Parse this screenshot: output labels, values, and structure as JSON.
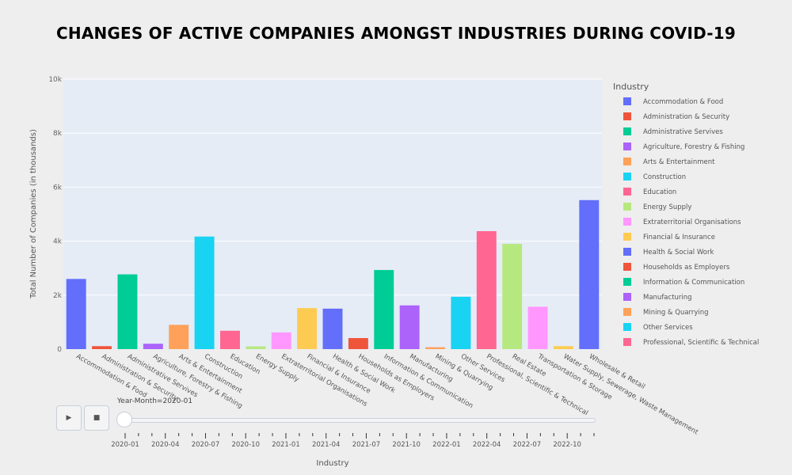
{
  "chart_data": {
    "type": "bar",
    "title": "CHANGES OF ACTIVE COMPANIES AMONGST INDUSTRIES DURING COVID-19",
    "xlabel": "Industry",
    "ylabel": "Total Number of Companies (in thousands)",
    "ylim": [
      0,
      10000
    ],
    "yticks": [
      0,
      2000,
      4000,
      6000,
      8000,
      10000
    ],
    "ytick_labels": [
      "0",
      "2k",
      "4k",
      "6k",
      "8k",
      "10k"
    ],
    "grid": true,
    "legend_title": "Industry",
    "legend_placement": "right",
    "categories": [
      "Accommodation & Food",
      "Administration & Security",
      "Administrative Servives",
      "Agriculture, Forestry & Fishing",
      "Arts & Entertainment",
      "Construction",
      "Education",
      "Energy Supply",
      "Extraterritorial Organisations",
      "Financial & Insurance",
      "Health & Social Work",
      "Households as Employers",
      "Information & Communication",
      "Manufacturing",
      "Mining & Quarrying",
      "Other Services",
      "Professional, Scientific & Technical",
      "Real Estate",
      "Transportation & Storage",
      "Water Supply, Sewerage, Waste Management",
      "Wholesale & Retail"
    ],
    "values": [
      2600,
      110,
      2770,
      200,
      900,
      4170,
      680,
      100,
      620,
      1520,
      1500,
      410,
      2930,
      1620,
      70,
      1940,
      4370,
      3900,
      1570,
      110,
      5520
    ],
    "colors": [
      "#636efa",
      "#ef553b",
      "#00cc96",
      "#ab63fa",
      "#ffa15a",
      "#19d3f3",
      "#ff6692",
      "#b6e880",
      "#ff97ff",
      "#fecb52",
      "#636efa",
      "#ef553b",
      "#00cc96",
      "#ab63fa",
      "#ffa15a",
      "#19d3f3",
      "#ff6692",
      "#b6e880",
      "#ff97ff",
      "#fecb52",
      "#636efa"
    ],
    "legend_entries": [
      "Accommodation & Food",
      "Administration & Security",
      "Administrative Servives",
      "Agriculture, Forestry & Fishing",
      "Arts & Entertainment",
      "Construction",
      "Education",
      "Energy Supply",
      "Extraterritorial Organisations",
      "Financial & Insurance",
      "Health & Social Work",
      "Households as Employers",
      "Information & Communication",
      "Manufacturing",
      "Mining & Quarrying",
      "Other Services",
      "Professional, Scientific & Technical"
    ]
  },
  "controls": {
    "play_icon": "▶",
    "stop_icon": "■",
    "current_label": "Year-Month=2020-01",
    "step_labels": [
      "2020-01",
      "2020-04",
      "2020-07",
      "2020-10",
      "2021-01",
      "2021-04",
      "2021-07",
      "2021-10",
      "2022-01",
      "2022-04",
      "2022-07",
      "2022-10"
    ],
    "step_count": 36
  }
}
